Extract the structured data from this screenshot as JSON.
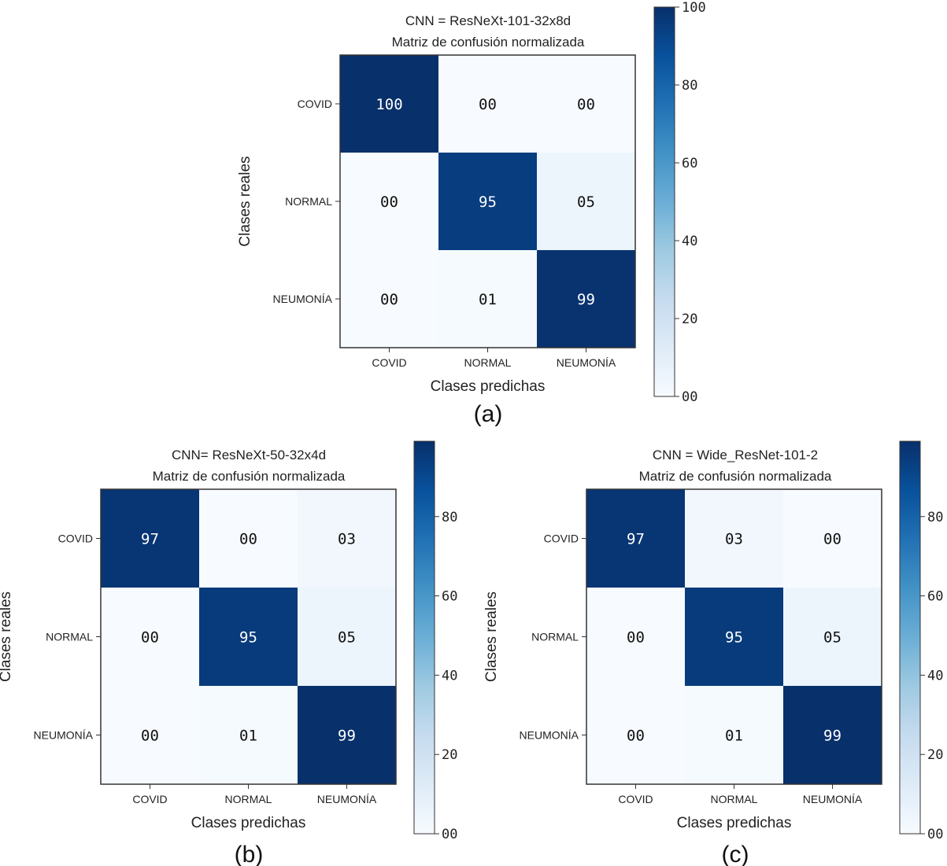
{
  "chart_data": [
    {
      "type": "heatmap",
      "panel_label": "(a)",
      "title_line1": "CNN = ResNeXt-101-32x8d",
      "title_line2": "Matriz de confusión normalizada",
      "xlabel": "Clases predichas",
      "ylabel": "Clases reales",
      "x_categories": [
        "COVID",
        "NORMAL",
        "NEUMONÍA"
      ],
      "y_categories": [
        "COVID",
        "NORMAL",
        "NEUMONÍA"
      ],
      "values": [
        [
          100,
          0,
          0
        ],
        [
          0,
          95,
          5
        ],
        [
          0,
          1,
          99
        ]
      ],
      "cell_labels": [
        [
          "100",
          "00",
          "00"
        ],
        [
          "00",
          "95",
          "05"
        ],
        [
          "00",
          "01",
          "99"
        ]
      ],
      "colorscale": "Blues",
      "color_range": [
        0,
        100
      ],
      "colorbar_ticks": [
        {
          "value": 0,
          "label": "00"
        },
        {
          "value": 20,
          "label": "20"
        },
        {
          "value": 40,
          "label": "40"
        },
        {
          "value": 60,
          "label": "60"
        },
        {
          "value": 80,
          "label": "80"
        },
        {
          "value": 100,
          "label": "100"
        }
      ]
    },
    {
      "type": "heatmap",
      "panel_label": "(b)",
      "title_line1": "CNN= ResNeXt-50-32x4d",
      "title_line2": "Matriz de confusión normalizada",
      "xlabel": "Clases predichas",
      "ylabel": "Clases reales",
      "x_categories": [
        "COVID",
        "NORMAL",
        "NEUMONÍA"
      ],
      "y_categories": [
        "COVID",
        "NORMAL",
        "NEUMONÍA"
      ],
      "values": [
        [
          97,
          0,
          3
        ],
        [
          0,
          95,
          5
        ],
        [
          0,
          1,
          99
        ]
      ],
      "cell_labels": [
        [
          "97",
          "00",
          "03"
        ],
        [
          "00",
          "95",
          "05"
        ],
        [
          "00",
          "01",
          "99"
        ]
      ],
      "colorscale": "Blues",
      "color_range": [
        0,
        99
      ],
      "colorbar_ticks": [
        {
          "value": 0,
          "label": "00"
        },
        {
          "value": 20,
          "label": "20"
        },
        {
          "value": 40,
          "label": "40"
        },
        {
          "value": 60,
          "label": "60"
        },
        {
          "value": 80,
          "label": "80"
        }
      ]
    },
    {
      "type": "heatmap",
      "panel_label": "(c)",
      "title_line1": "CNN = Wide_ResNet-101-2",
      "title_line2": "Matriz de confusión normalizada",
      "xlabel": "Clases predichas",
      "ylabel": "Clases reales",
      "x_categories": [
        "COVID",
        "NORMAL",
        "NEUMONÍA"
      ],
      "y_categories": [
        "COVID",
        "NORMAL",
        "NEUMONÍA"
      ],
      "values": [
        [
          97,
          3,
          0
        ],
        [
          0,
          95,
          5
        ],
        [
          0,
          1,
          99
        ]
      ],
      "cell_labels": [
        [
          "97",
          "03",
          "00"
        ],
        [
          "00",
          "95",
          "05"
        ],
        [
          "00",
          "01",
          "99"
        ]
      ],
      "colorscale": "Blues",
      "color_range": [
        0,
        99
      ],
      "colorbar_ticks": [
        {
          "value": 0,
          "label": "00"
        },
        {
          "value": 20,
          "label": "20"
        },
        {
          "value": 40,
          "label": "40"
        },
        {
          "value": 60,
          "label": "60"
        },
        {
          "value": 80,
          "label": "80"
        }
      ]
    }
  ]
}
